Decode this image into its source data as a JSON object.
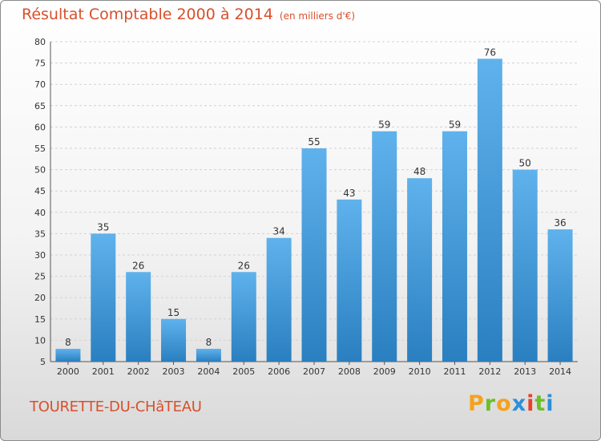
{
  "chart_data": {
    "type": "bar",
    "title": "Résultat Comptable 2000 à 2014",
    "subtitle": "(en milliers d'€)",
    "categories": [
      "2000",
      "2001",
      "2002",
      "2003",
      "2004",
      "2005",
      "2006",
      "2007",
      "2008",
      "2009",
      "2010",
      "2011",
      "2012",
      "2013",
      "2014"
    ],
    "values": [
      8,
      35,
      26,
      15,
      8,
      26,
      34,
      55,
      43,
      59,
      48,
      59,
      76,
      50,
      36
    ],
    "ylim": [
      5,
      80
    ],
    "yticks": [
      5,
      10,
      15,
      20,
      25,
      30,
      35,
      40,
      45,
      50,
      55,
      60,
      65,
      70,
      75,
      80
    ],
    "xlabel": "",
    "ylabel": "",
    "grid": true
  },
  "location": "TOURETTE-DU-CHâTEAU",
  "logo": {
    "letters": [
      "P",
      "r",
      "o",
      "x",
      "i",
      "t",
      "i"
    ]
  },
  "colors": {
    "title": "#d94f2b",
    "bar_top": "#5fb2ec",
    "bar_bottom": "#2a7fc0",
    "logo_letters": [
      "#f4a21d",
      "#6cbf2a",
      "#f4a21d",
      "#2d8fd8",
      "#e8402a",
      "#6cbf2a",
      "#2d8fd8"
    ]
  }
}
